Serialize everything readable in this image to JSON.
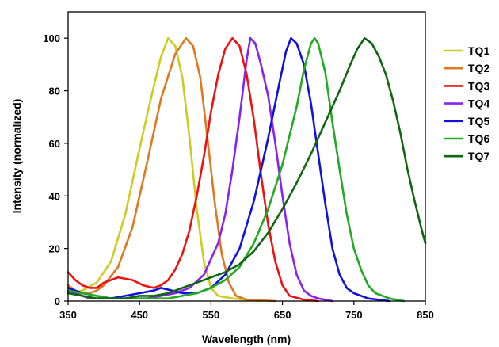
{
  "chart_data": {
    "type": "line",
    "title": "",
    "xlabel": "Wavelength (nm)",
    "ylabel": "Intensity (normalized)",
    "xlim": [
      350,
      850
    ],
    "ylim": [
      0,
      110
    ],
    "xticks": [
      "350",
      "450",
      "550",
      "650",
      "750",
      "850"
    ],
    "yticks": [
      "0",
      "20",
      "40",
      "60",
      "80",
      "100"
    ],
    "grid": false,
    "legend_position": "right",
    "series": [
      {
        "name": "TQ1",
        "color": "#CCCC22",
        "points": [
          [
            350,
            3
          ],
          [
            370,
            4
          ],
          [
            390,
            7
          ],
          [
            410,
            15
          ],
          [
            430,
            33
          ],
          [
            450,
            58
          ],
          [
            465,
            76
          ],
          [
            480,
            93
          ],
          [
            490,
            100
          ],
          [
            500,
            97
          ],
          [
            510,
            85
          ],
          [
            520,
            62
          ],
          [
            530,
            35
          ],
          [
            540,
            15
          ],
          [
            550,
            5
          ],
          [
            560,
            2
          ],
          [
            580,
            1
          ],
          [
            600,
            0.5
          ],
          [
            620,
            0
          ]
        ]
      },
      {
        "name": "TQ2",
        "color": "#E07820",
        "points": [
          [
            350,
            6
          ],
          [
            360,
            4
          ],
          [
            370,
            3
          ],
          [
            380,
            3
          ],
          [
            390,
            4
          ],
          [
            400,
            6
          ],
          [
            420,
            13
          ],
          [
            440,
            28
          ],
          [
            460,
            52
          ],
          [
            480,
            77
          ],
          [
            500,
            94
          ],
          [
            515,
            100
          ],
          [
            525,
            97
          ],
          [
            535,
            85
          ],
          [
            545,
            62
          ],
          [
            555,
            38
          ],
          [
            565,
            18
          ],
          [
            575,
            7
          ],
          [
            585,
            2
          ],
          [
            600,
            0.5
          ],
          [
            640,
            0
          ]
        ]
      },
      {
        "name": "TQ3",
        "color": "#EE1111",
        "points": [
          [
            350,
            11
          ],
          [
            360,
            8
          ],
          [
            370,
            6
          ],
          [
            380,
            5
          ],
          [
            390,
            5
          ],
          [
            400,
            7
          ],
          [
            420,
            9
          ],
          [
            440,
            8
          ],
          [
            455,
            6
          ],
          [
            470,
            5
          ],
          [
            480,
            6
          ],
          [
            490,
            8
          ],
          [
            500,
            12
          ],
          [
            510,
            18
          ],
          [
            520,
            27
          ],
          [
            530,
            40
          ],
          [
            540,
            55
          ],
          [
            550,
            72
          ],
          [
            560,
            86
          ],
          [
            570,
            96
          ],
          [
            580,
            100
          ],
          [
            590,
            97
          ],
          [
            600,
            86
          ],
          [
            610,
            69
          ],
          [
            620,
            48
          ],
          [
            630,
            29
          ],
          [
            640,
            15
          ],
          [
            650,
            6
          ],
          [
            660,
            2
          ],
          [
            680,
            0.5
          ],
          [
            700,
            0
          ]
        ]
      },
      {
        "name": "TQ4",
        "color": "#8822EE",
        "points": [
          [
            350,
            4
          ],
          [
            360,
            3
          ],
          [
            370,
            2
          ],
          [
            380,
            1
          ],
          [
            400,
            1
          ],
          [
            420,
            1
          ],
          [
            440,
            1
          ],
          [
            460,
            1
          ],
          [
            480,
            2
          ],
          [
            500,
            3
          ],
          [
            520,
            5
          ],
          [
            540,
            10
          ],
          [
            560,
            22
          ],
          [
            570,
            33
          ],
          [
            580,
            50
          ],
          [
            590,
            70
          ],
          [
            600,
            92
          ],
          [
            605,
            100
          ],
          [
            612,
            98
          ],
          [
            620,
            90
          ],
          [
            630,
            78
          ],
          [
            640,
            60
          ],
          [
            650,
            40
          ],
          [
            660,
            22
          ],
          [
            670,
            10
          ],
          [
            680,
            4
          ],
          [
            690,
            2
          ],
          [
            700,
            1
          ],
          [
            720,
            0
          ]
        ]
      },
      {
        "name": "TQ5",
        "color": "#1111DD",
        "points": [
          [
            350,
            5
          ],
          [
            370,
            3
          ],
          [
            390,
            2
          ],
          [
            410,
            1
          ],
          [
            430,
            2
          ],
          [
            450,
            3
          ],
          [
            470,
            4
          ],
          [
            480,
            5
          ],
          [
            495,
            4
          ],
          [
            510,
            3
          ],
          [
            530,
            3
          ],
          [
            550,
            5
          ],
          [
            570,
            10
          ],
          [
            590,
            20
          ],
          [
            610,
            38
          ],
          [
            630,
            62
          ],
          [
            645,
            82
          ],
          [
            655,
            95
          ],
          [
            662,
            100
          ],
          [
            670,
            98
          ],
          [
            680,
            90
          ],
          [
            690,
            75
          ],
          [
            700,
            56
          ],
          [
            710,
            37
          ],
          [
            720,
            20
          ],
          [
            730,
            10
          ],
          [
            740,
            5
          ],
          [
            750,
            3
          ],
          [
            770,
            1
          ],
          [
            800,
            0
          ]
        ]
      },
      {
        "name": "TQ6",
        "color": "#22AA22",
        "points": [
          [
            350,
            4
          ],
          [
            370,
            3
          ],
          [
            390,
            2
          ],
          [
            410,
            1
          ],
          [
            430,
            1
          ],
          [
            450,
            1
          ],
          [
            470,
            1
          ],
          [
            490,
            1
          ],
          [
            510,
            2
          ],
          [
            530,
            3
          ],
          [
            550,
            5
          ],
          [
            570,
            8
          ],
          [
            590,
            13
          ],
          [
            610,
            22
          ],
          [
            630,
            35
          ],
          [
            650,
            52
          ],
          [
            670,
            74
          ],
          [
            680,
            88
          ],
          [
            690,
            98
          ],
          [
            695,
            100
          ],
          [
            700,
            98
          ],
          [
            710,
            87
          ],
          [
            720,
            68
          ],
          [
            730,
            50
          ],
          [
            740,
            33
          ],
          [
            750,
            20
          ],
          [
            760,
            12
          ],
          [
            770,
            6
          ],
          [
            780,
            3
          ],
          [
            800,
            1
          ],
          [
            820,
            0
          ]
        ]
      },
      {
        "name": "TQ7",
        "color": "#116611",
        "points": [
          [
            350,
            3
          ],
          [
            370,
            2
          ],
          [
            390,
            1
          ],
          [
            410,
            1
          ],
          [
            430,
            1
          ],
          [
            450,
            2
          ],
          [
            470,
            2
          ],
          [
            490,
            3
          ],
          [
            510,
            5
          ],
          [
            530,
            7
          ],
          [
            550,
            9
          ],
          [
            570,
            11
          ],
          [
            590,
            14
          ],
          [
            610,
            19
          ],
          [
            630,
            26
          ],
          [
            650,
            35
          ],
          [
            670,
            45
          ],
          [
            690,
            56
          ],
          [
            710,
            68
          ],
          [
            730,
            80
          ],
          [
            745,
            90
          ],
          [
            755,
            96
          ],
          [
            765,
            100
          ],
          [
            775,
            98
          ],
          [
            785,
            93
          ],
          [
            795,
            86
          ],
          [
            805,
            76
          ],
          [
            815,
            64
          ],
          [
            825,
            50
          ],
          [
            835,
            38
          ],
          [
            845,
            27
          ],
          [
            850,
            22
          ]
        ]
      }
    ]
  }
}
